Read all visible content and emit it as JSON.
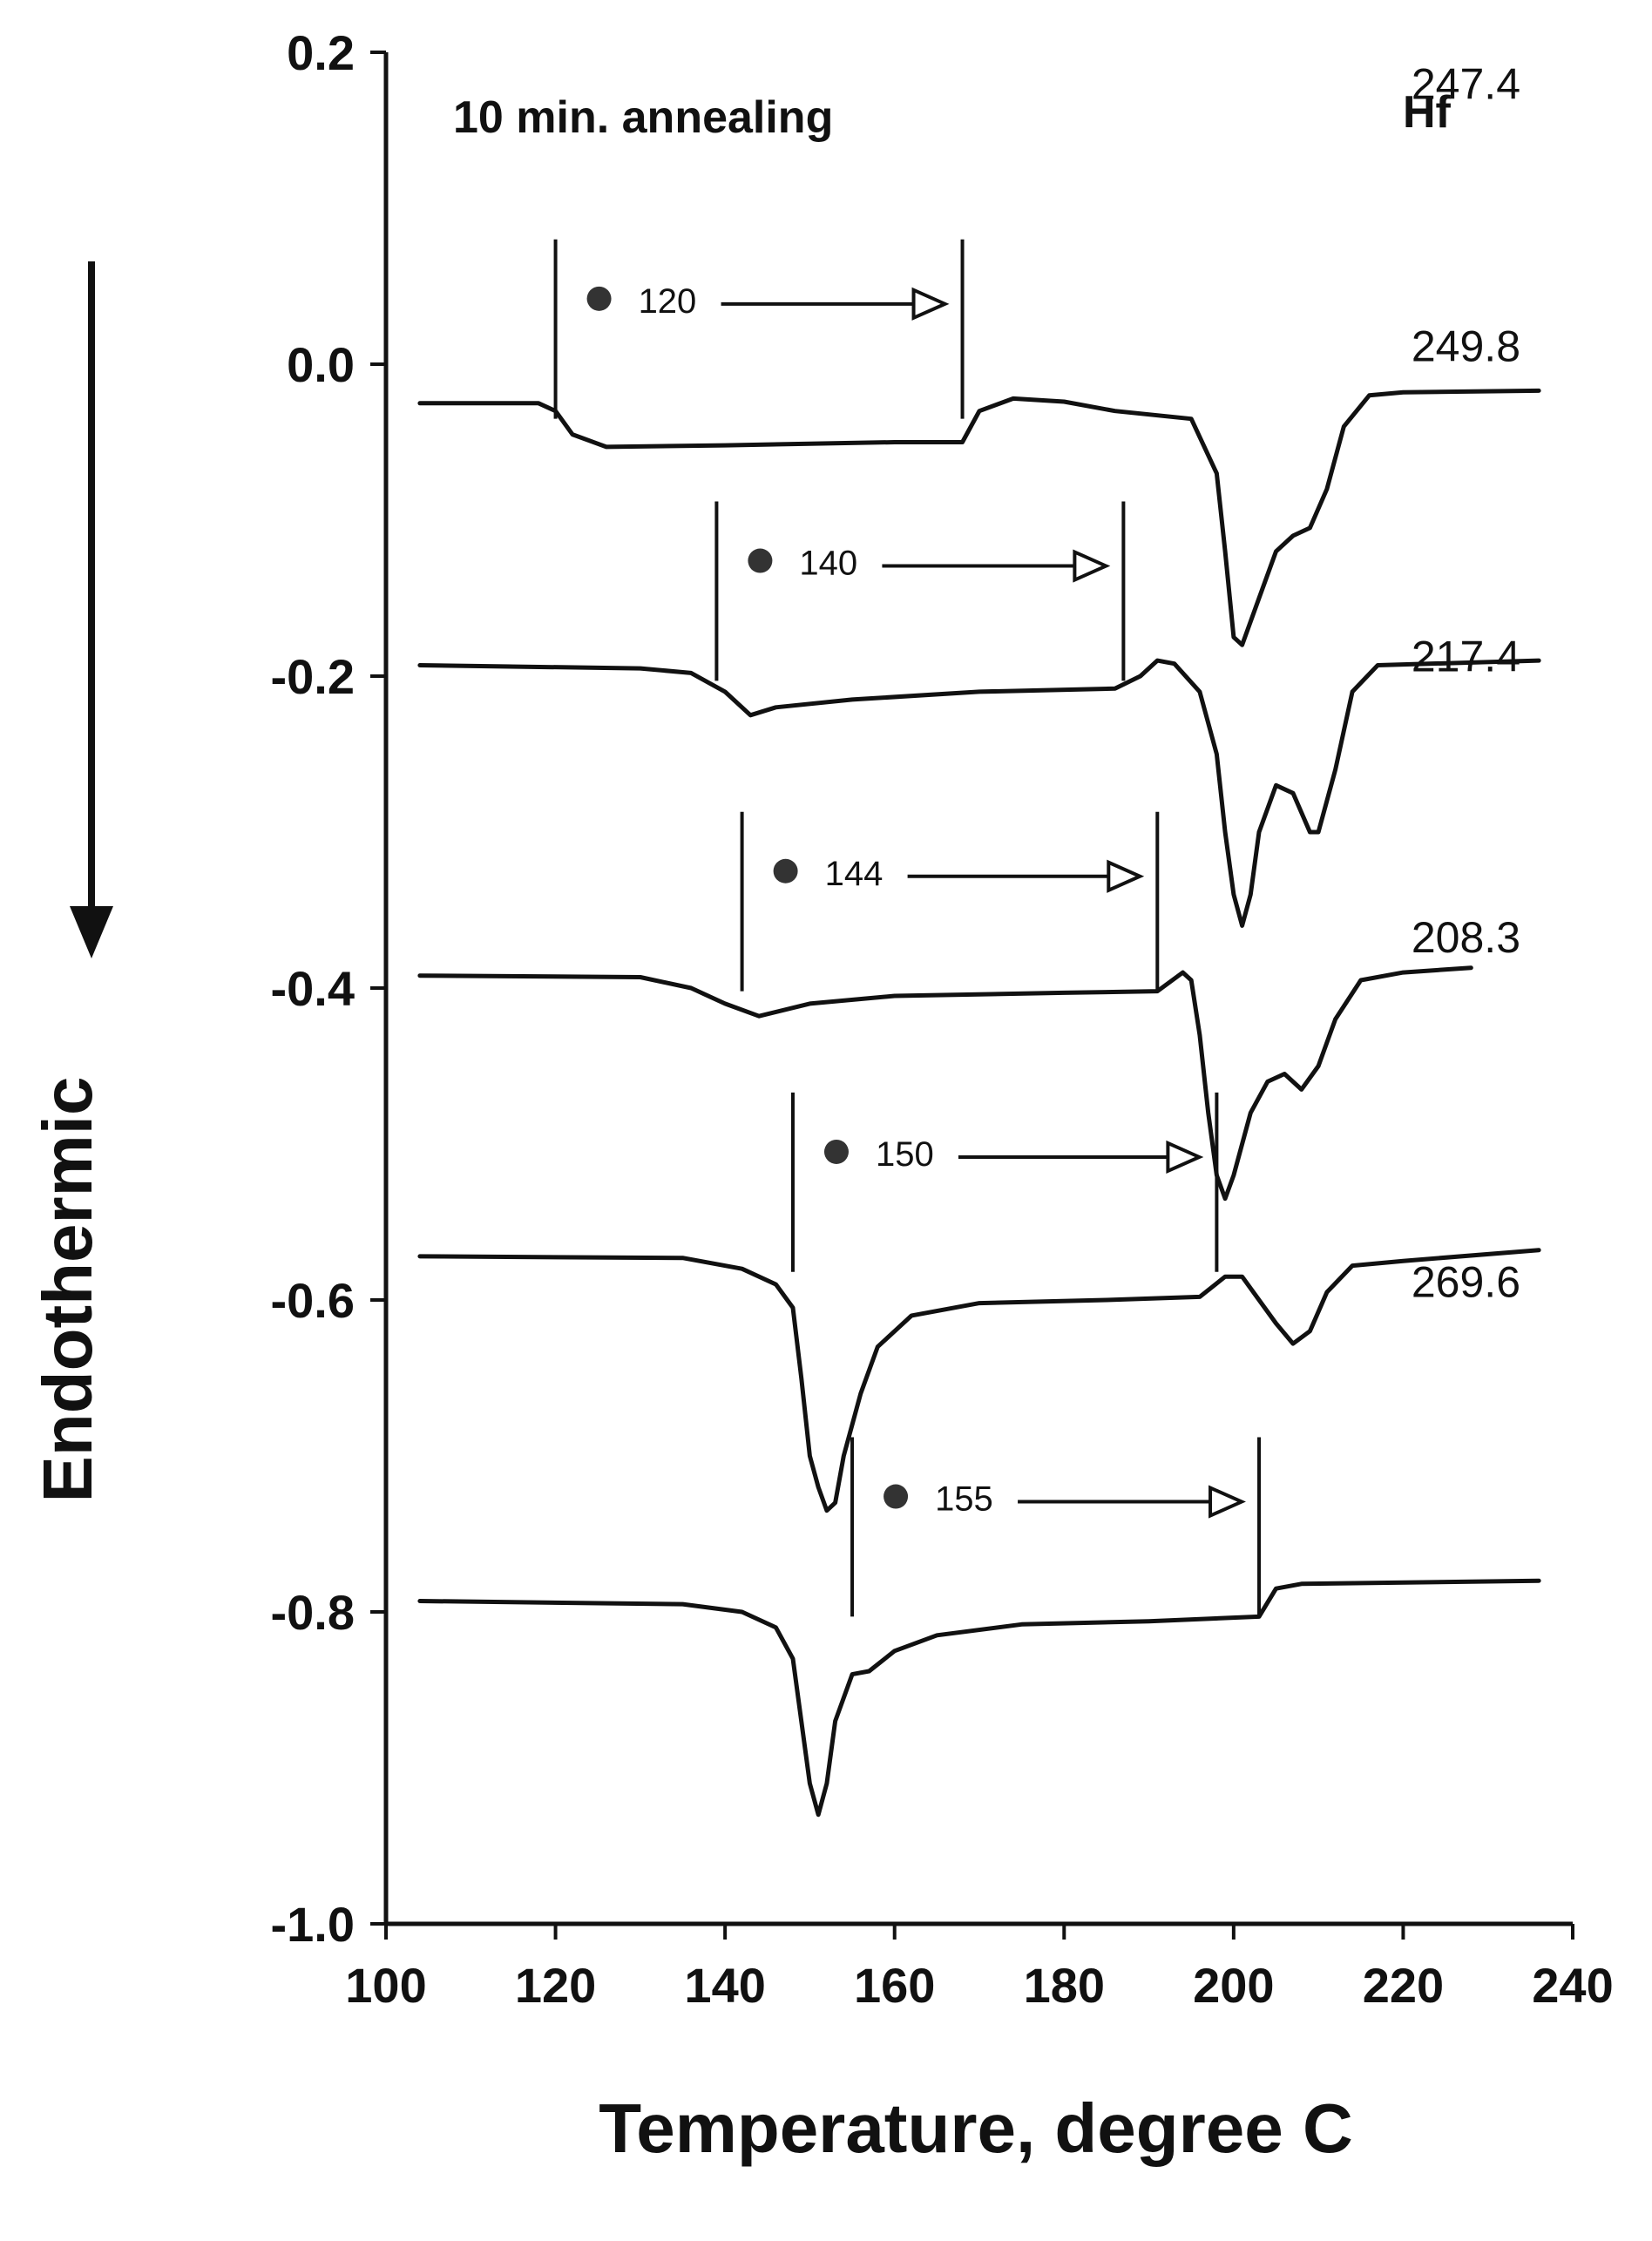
{
  "chart_data": {
    "type": "line",
    "title": "10 min. annealing",
    "xlabel": "Temperature, degree C",
    "ylabel": "Endothermic",
    "xlim": [
      100,
      240
    ],
    "ylim": [
      -1.0,
      0.2
    ],
    "x_ticks": [
      "100",
      "120",
      "140",
      "160",
      "180",
      "200",
      "220",
      "240"
    ],
    "y_ticks": [
      "0.2",
      "0.0",
      "-0.2",
      "-0.4",
      "-0.6",
      "-0.8",
      "-1.0"
    ],
    "grid": false,
    "legend": "none",
    "hf_header": "Hf",
    "series": [
      {
        "hf": "247.4",
        "anneal_label": "120",
        "anneal_start": 120,
        "anneal_end": 168,
        "points": [
          [
            104,
            -0.025
          ],
          [
            118,
            -0.025
          ],
          [
            120,
            -0.03
          ],
          [
            122,
            -0.045
          ],
          [
            126,
            -0.053
          ],
          [
            140,
            -0.052
          ],
          [
            160,
            -0.05
          ],
          [
            168,
            -0.05
          ],
          [
            170,
            -0.03
          ],
          [
            174,
            -0.022
          ],
          [
            180,
            -0.024
          ],
          [
            186,
            -0.03
          ],
          [
            195,
            -0.035
          ],
          [
            198,
            -0.07
          ],
          [
            199,
            -0.12
          ],
          [
            200,
            -0.175
          ],
          [
            201,
            -0.18
          ],
          [
            203,
            -0.15
          ],
          [
            205,
            -0.12
          ],
          [
            207,
            -0.11
          ],
          [
            209,
            -0.105
          ],
          [
            211,
            -0.08
          ],
          [
            213,
            -0.04
          ],
          [
            216,
            -0.02
          ],
          [
            220,
            -0.018
          ],
          [
            236,
            -0.017
          ]
        ]
      },
      {
        "hf": "249.8",
        "anneal_label": "140",
        "anneal_start": 139,
        "anneal_end": 187,
        "points": [
          [
            104,
            -0.193
          ],
          [
            130,
            -0.195
          ],
          [
            136,
            -0.198
          ],
          [
            140,
            -0.21
          ],
          [
            143,
            -0.225
          ],
          [
            146,
            -0.22
          ],
          [
            155,
            -0.215
          ],
          [
            170,
            -0.21
          ],
          [
            186,
            -0.208
          ],
          [
            189,
            -0.2
          ],
          [
            191,
            -0.19
          ],
          [
            193,
            -0.192
          ],
          [
            196,
            -0.21
          ],
          [
            198,
            -0.25
          ],
          [
            199,
            -0.3
          ],
          [
            200,
            -0.34
          ],
          [
            201,
            -0.36
          ],
          [
            202,
            -0.34
          ],
          [
            203,
            -0.3
          ],
          [
            205,
            -0.27
          ],
          [
            207,
            -0.275
          ],
          [
            209,
            -0.3
          ],
          [
            210,
            -0.3
          ],
          [
            212,
            -0.26
          ],
          [
            214,
            -0.21
          ],
          [
            217,
            -0.193
          ],
          [
            236,
            -0.19
          ]
        ]
      },
      {
        "hf": "217.4",
        "anneal_label": "144",
        "anneal_start": 142,
        "anneal_end": 191,
        "points": [
          [
            104,
            -0.392
          ],
          [
            130,
            -0.393
          ],
          [
            136,
            -0.4
          ],
          [
            140,
            -0.41
          ],
          [
            144,
            -0.418
          ],
          [
            150,
            -0.41
          ],
          [
            160,
            -0.405
          ],
          [
            180,
            -0.403
          ],
          [
            191,
            -0.402
          ],
          [
            194,
            -0.39
          ],
          [
            195,
            -0.395
          ],
          [
            196,
            -0.43
          ],
          [
            197,
            -0.48
          ],
          [
            198,
            -0.52
          ],
          [
            199,
            -0.535
          ],
          [
            200,
            -0.52
          ],
          [
            202,
            -0.48
          ],
          [
            204,
            -0.46
          ],
          [
            206,
            -0.455
          ],
          [
            208,
            -0.465
          ],
          [
            210,
            -0.45
          ],
          [
            212,
            -0.42
          ],
          [
            215,
            -0.395
          ],
          [
            220,
            -0.39
          ],
          [
            228,
            -0.387
          ]
        ]
      },
      {
        "hf": "208.3",
        "anneal_label": "150",
        "anneal_start": 148,
        "anneal_end": 198,
        "points": [
          [
            104,
            -0.572
          ],
          [
            135,
            -0.573
          ],
          [
            142,
            -0.58
          ],
          [
            146,
            -0.59
          ],
          [
            148,
            -0.605
          ],
          [
            149,
            -0.65
          ],
          [
            150,
            -0.7
          ],
          [
            151,
            -0.72
          ],
          [
            152,
            -0.735
          ],
          [
            153,
            -0.73
          ],
          [
            154,
            -0.7
          ],
          [
            156,
            -0.66
          ],
          [
            158,
            -0.63
          ],
          [
            162,
            -0.61
          ],
          [
            170,
            -0.602
          ],
          [
            185,
            -0.6
          ],
          [
            196,
            -0.598
          ],
          [
            199,
            -0.585
          ],
          [
            201,
            -0.585
          ],
          [
            203,
            -0.6
          ],
          [
            205,
            -0.615
          ],
          [
            207,
            -0.628
          ],
          [
            209,
            -0.62
          ],
          [
            211,
            -0.595
          ],
          [
            214,
            -0.578
          ],
          [
            220,
            -0.575
          ],
          [
            236,
            -0.568
          ]
        ]
      },
      {
        "hf": "269.6",
        "anneal_label": "155",
        "anneal_start": 155,
        "anneal_end": 203,
        "points": [
          [
            104,
            -0.793
          ],
          [
            135,
            -0.795
          ],
          [
            142,
            -0.8
          ],
          [
            146,
            -0.81
          ],
          [
            148,
            -0.83
          ],
          [
            149,
            -0.87
          ],
          [
            150,
            -0.91
          ],
          [
            151,
            -0.93
          ],
          [
            152,
            -0.91
          ],
          [
            153,
            -0.87
          ],
          [
            155,
            -0.84
          ],
          [
            157,
            -0.838
          ],
          [
            160,
            -0.825
          ],
          [
            165,
            -0.815
          ],
          [
            175,
            -0.808
          ],
          [
            190,
            -0.806
          ],
          [
            203,
            -0.803
          ],
          [
            205,
            -0.785
          ],
          [
            208,
            -0.782
          ],
          [
            236,
            -0.78
          ]
        ]
      }
    ]
  }
}
